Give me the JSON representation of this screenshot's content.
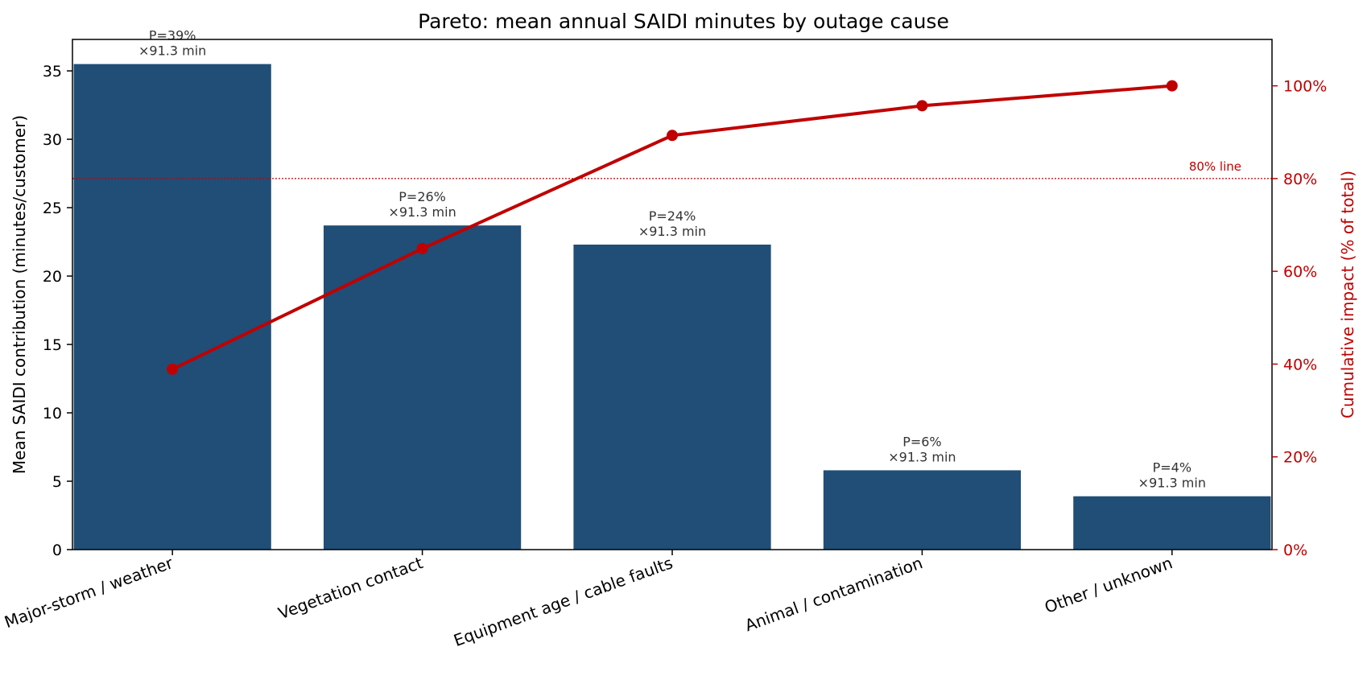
{
  "chart_data": {
    "type": "bar",
    "title": "Pareto: mean annual SAIDI minutes by outage cause",
    "categories": [
      "Major-storm / weather",
      "Vegetation contact",
      "Equipment age / cable faults",
      "Animal / contamination",
      "Other / unknown"
    ],
    "series": [
      {
        "type": "bar",
        "axis": "left",
        "values": [
          35.5,
          23.7,
          22.3,
          5.8,
          3.9
        ],
        "labels": [
          [
            "P=39%",
            "×91.3 min"
          ],
          [
            "P=26%",
            "×91.3 min"
          ],
          [
            "P=24%",
            "×91.3 min"
          ],
          [
            "P=6%",
            "×91.3 min"
          ],
          [
            "P=4%",
            "×91.3 min"
          ]
        ]
      },
      {
        "type": "line",
        "axis": "right",
        "values": [
          38.9,
          64.9,
          89.3,
          95.7,
          100.0
        ]
      }
    ],
    "ylabel": "Mean SAIDI contribution  (minutes/customer)",
    "ylabel_right": "Cumulative impact  (% of total)",
    "ylim": [
      0,
      37.3
    ],
    "ylim_right": [
      0,
      110
    ],
    "yticks": [
      0,
      5,
      10,
      15,
      20,
      25,
      30,
      35
    ],
    "yticks_right": [
      0,
      20,
      40,
      60,
      80,
      100
    ],
    "yticks_right_labels": [
      "0%",
      "20%",
      "40%",
      "60%",
      "80%",
      "100%"
    ],
    "reference_line": {
      "axis": "right",
      "value": 80,
      "label": "80% line"
    },
    "grid": false,
    "colors": {
      "bar": "#204e77",
      "line": "#c00000",
      "text": "#333333"
    }
  }
}
